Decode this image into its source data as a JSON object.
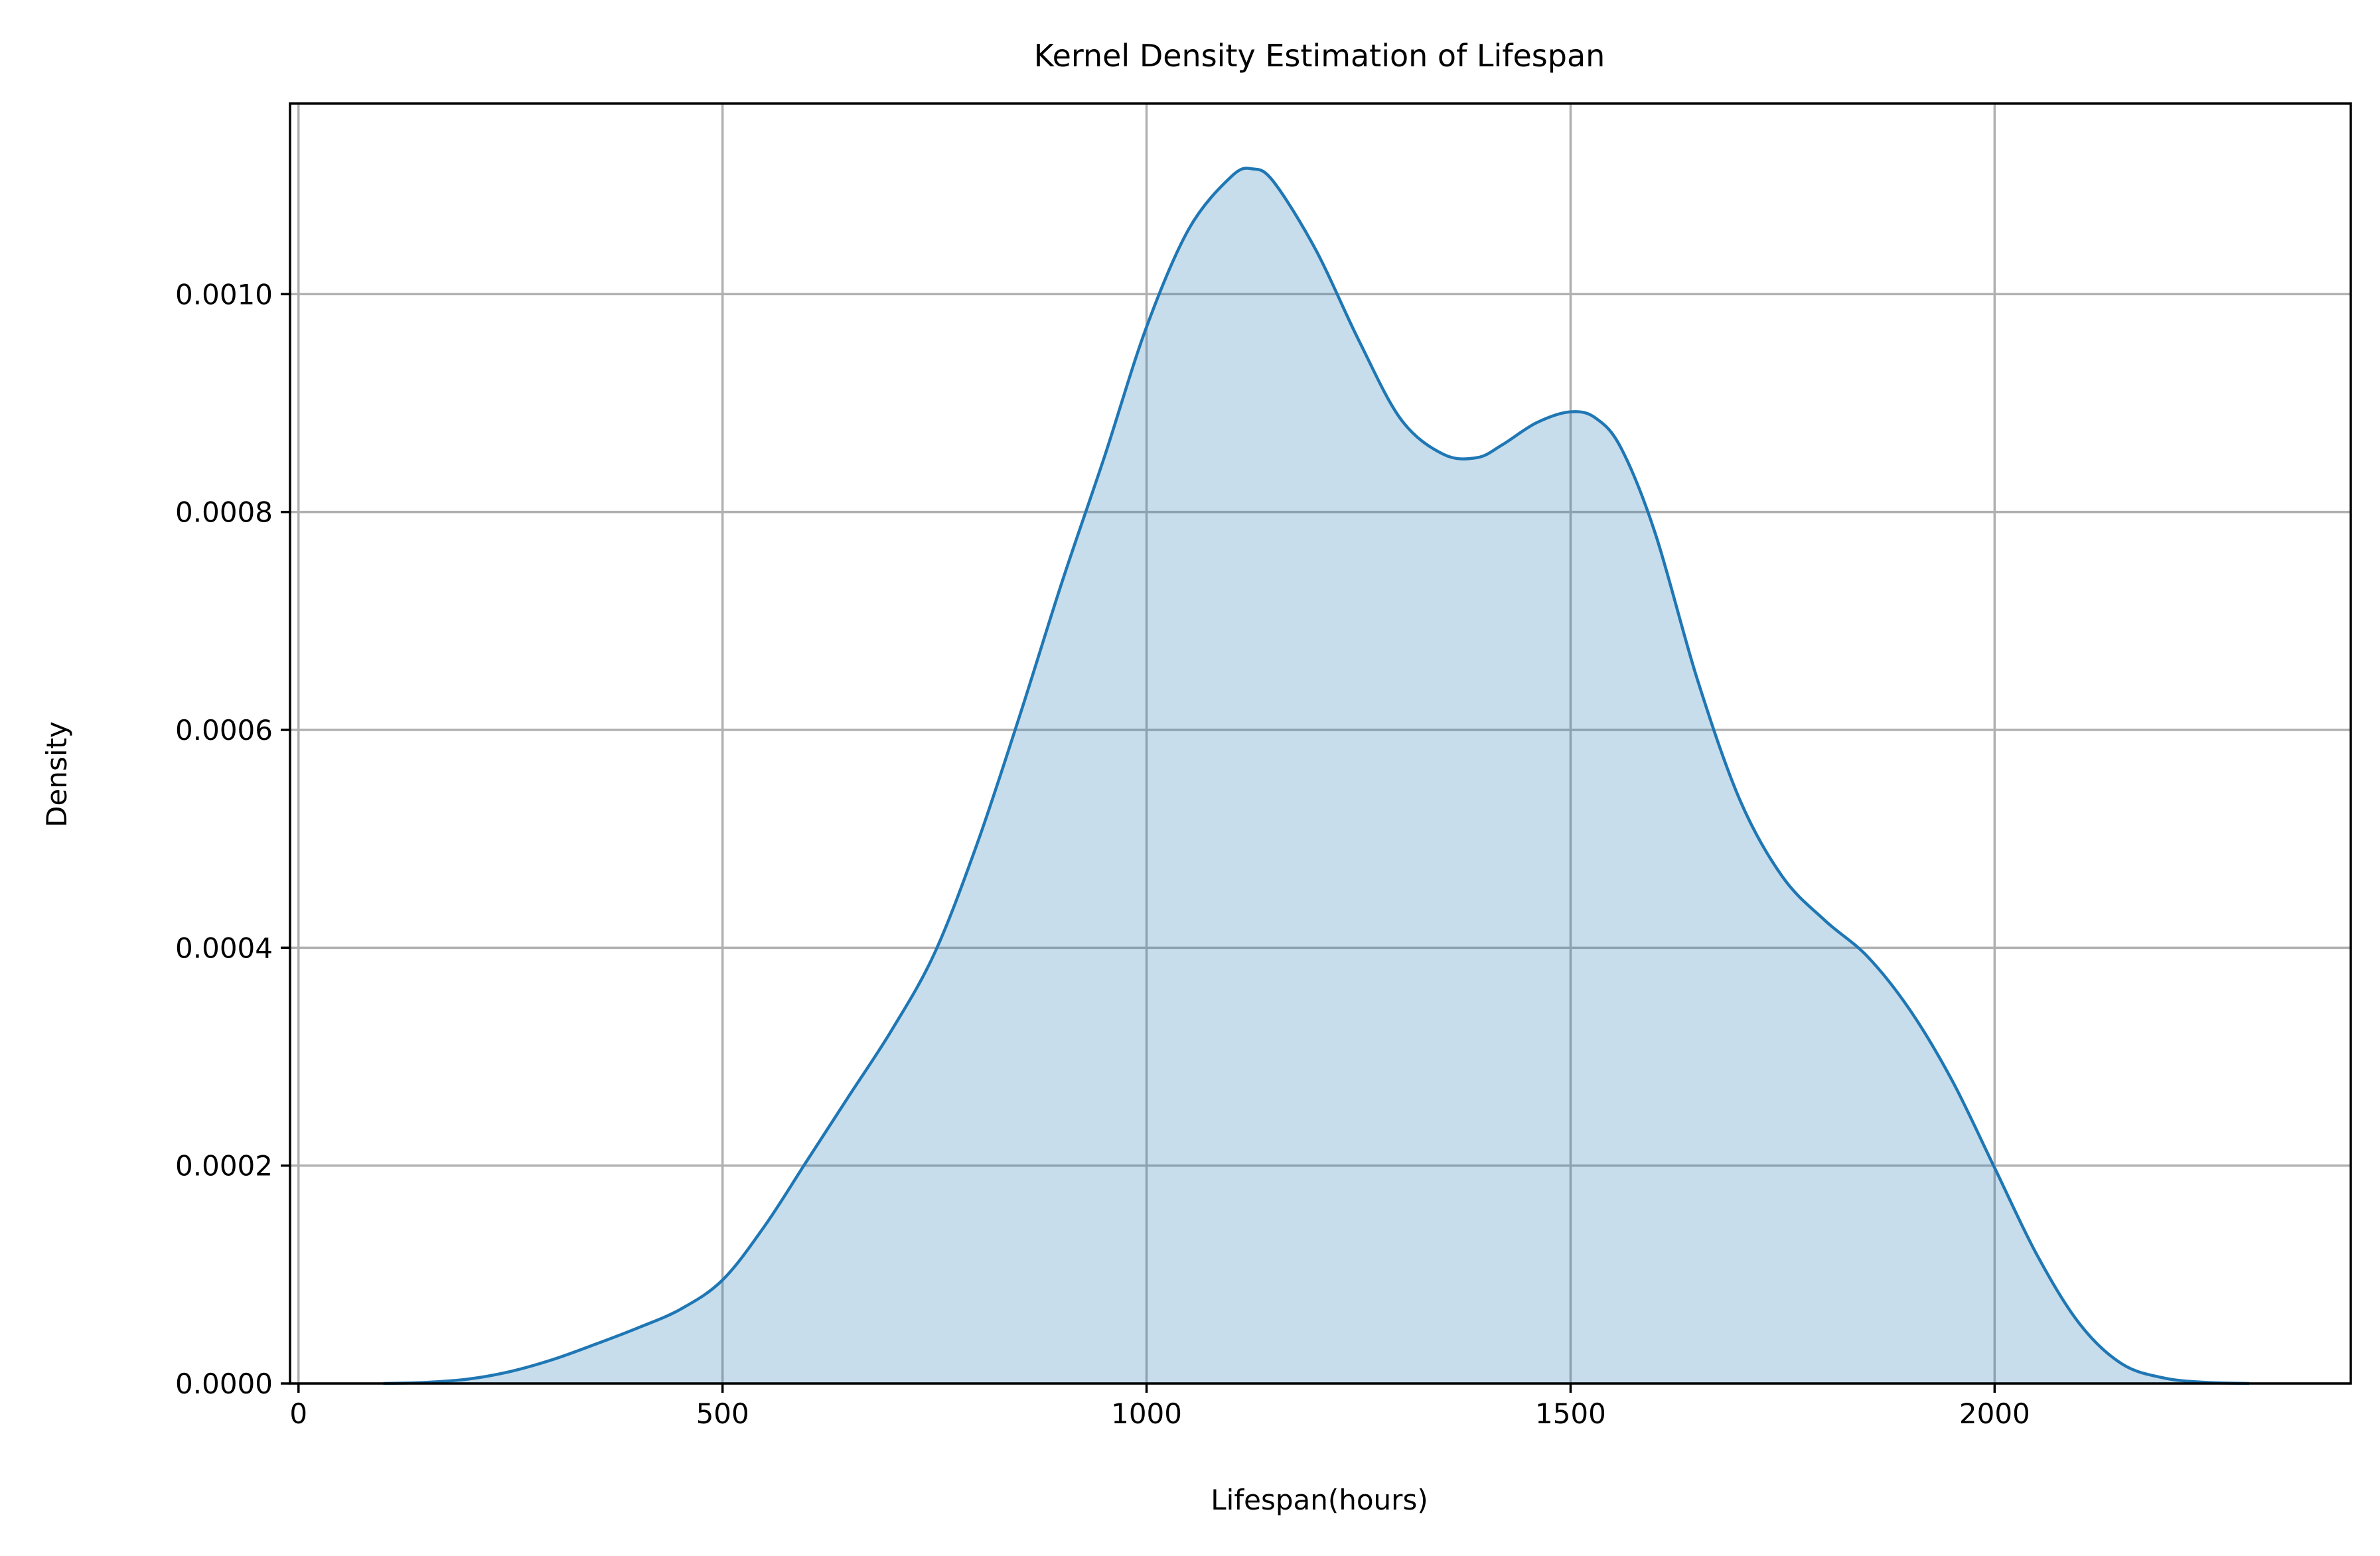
{
  "chart_data": {
    "type": "area",
    "title": "Kernel Density Estimation of Lifespan",
    "xlabel": "Lifespan(hours)",
    "ylabel": "Density",
    "xlim": [
      -10,
      2420
    ],
    "ylim": [
      0,
      0.001175
    ],
    "xticks": [
      0,
      500,
      1000,
      1500,
      2000
    ],
    "xtick_labels": [
      "0",
      "500",
      "1000",
      "1500",
      "2000"
    ],
    "yticks": [
      0,
      0.0002,
      0.0004,
      0.0006,
      0.0008,
      0.001
    ],
    "ytick_labels": [
      "0.0000",
      "0.0002",
      "0.0004",
      "0.0006",
      "0.0008",
      "0.0010"
    ],
    "grid": true,
    "colors": {
      "line": "#1f77b4",
      "fill": "#1f77b4",
      "grid": "#b0b0b0"
    },
    "series": [
      {
        "x": [
          100,
          150,
          200,
          250,
          300,
          350,
          400,
          450,
          500,
          550,
          600,
          650,
          700,
          750,
          800,
          850,
          900,
          950,
          1000,
          1050,
          1100,
          1125,
          1150,
          1200,
          1250,
          1300,
          1350,
          1390,
          1420,
          1460,
          1500,
          1530,
          1560,
          1600,
          1650,
          1700,
          1750,
          1800,
          1850,
          1900,
          1950,
          2000,
          2050,
          2100,
          2150,
          2200,
          2250,
          2300
        ],
        "y": [
          0.0,
          1e-06,
          4e-06,
          1.1e-05,
          2.2e-05,
          3.6e-05,
          5.1e-05,
          6.8e-05,
          9.5e-05,
          0.000145,
          0.000205,
          0.000265,
          0.000325,
          0.000395,
          0.000495,
          0.000612,
          0.000735,
          0.00085,
          0.00097,
          0.00106,
          0.001108,
          0.001115,
          0.001103,
          0.00104,
          0.000958,
          0.000885,
          0.000853,
          0.00085,
          0.000862,
          0.000882,
          0.000892,
          0.000886,
          0.000858,
          0.00078,
          0.000645,
          0.000535,
          0.000465,
          0.000425,
          0.000392,
          0.000343,
          0.000278,
          0.000198,
          0.000118,
          5.5e-05,
          1.8e-05,
          5e-06,
          1e-06,
          0.0
        ]
      }
    ]
  }
}
